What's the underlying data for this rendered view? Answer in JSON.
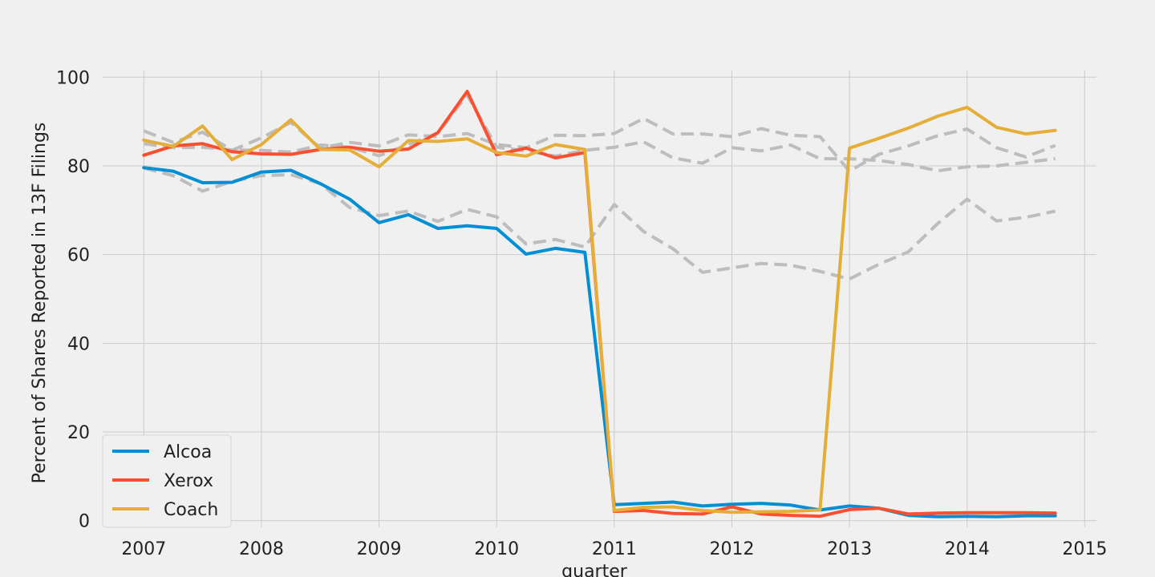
{
  "chart_data": {
    "type": "line",
    "title": "",
    "xlabel": "quarter",
    "ylabel": "Percent of Shares Reported in 13F Filings",
    "xlim": [
      2006.65,
      2015.1
    ],
    "ylim": [
      -1.5,
      101.5
    ],
    "xticks": [
      2007,
      2008,
      2009,
      2010,
      2011,
      2012,
      2013,
      2014,
      2015
    ],
    "yticks": [
      0,
      20,
      40,
      60,
      80,
      100
    ],
    "grid": true,
    "legend_position": "lower-left",
    "x": [
      2007.0,
      2007.25,
      2007.5,
      2007.75,
      2008.0,
      2008.25,
      2008.5,
      2008.75,
      2009.0,
      2009.25,
      2009.5,
      2009.75,
      2010.0,
      2010.25,
      2010.5,
      2010.75,
      2011.0,
      2011.25,
      2011.5,
      2011.75,
      2012.0,
      2012.25,
      2012.5,
      2012.75,
      2013.0,
      2013.25,
      2013.5,
      2013.75,
      2014.0,
      2014.25,
      2014.5,
      2014.75
    ],
    "series": [
      {
        "name": "Alcoa",
        "color": "#008fd5",
        "style": "solid",
        "values": [
          79.6,
          78.8,
          76.2,
          76.3,
          78.6,
          79.0,
          76.0,
          72.5,
          67.2,
          69.0,
          65.9,
          66.5,
          65.9,
          60.1,
          61.4,
          60.5,
          3.6,
          3.9,
          4.2,
          3.3,
          3.7,
          3.9,
          3.5,
          2.4,
          3.3,
          2.8,
          1.2,
          0.9,
          1.0,
          0.9,
          1.1,
          1.1
        ]
      },
      {
        "name": "Xerox",
        "color": "#fc4f30",
        "style": "solid",
        "values": [
          82.4,
          84.5,
          85.0,
          83.2,
          82.7,
          82.6,
          83.7,
          84.2,
          83.3,
          83.8,
          87.5,
          96.8,
          82.5,
          84.0,
          81.8,
          83.0,
          2.1,
          2.3,
          1.6,
          1.5,
          3.1,
          1.5,
          1.2,
          1.0,
          2.5,
          2.8,
          1.5,
          1.7,
          1.8,
          1.8,
          1.8,
          1.7
        ]
      },
      {
        "name": "Coach",
        "color": "#e5ae38",
        "style": "solid",
        "values": [
          85.8,
          84.4,
          89.0,
          81.4,
          84.8,
          90.4,
          83.7,
          83.6,
          79.8,
          85.7,
          85.5,
          86.1,
          83.0,
          82.2,
          84.8,
          83.7,
          2.3,
          3.0,
          3.1,
          2.3,
          1.9,
          2.0,
          2.1,
          2.4,
          84.0,
          86.2,
          88.5,
          91.2,
          93.2,
          88.7,
          87.2,
          88.0
        ]
      },
      {
        "name": "",
        "color": "#bdbdbd",
        "style": "dashed",
        "values": [
          79.5,
          77.8,
          74.3,
          76.5,
          77.8,
          78.0,
          76.0,
          70.6,
          68.8,
          69.8,
          67.5,
          70.2,
          68.5,
          62.4,
          63.4,
          61.7,
          71.3,
          65.2,
          61.3,
          56.0,
          57.0,
          58.0,
          57.6,
          56.2,
          54.5,
          57.8,
          60.6,
          67.0,
          72.5,
          67.6,
          68.4,
          69.8
        ]
      },
      {
        "name": "",
        "color": "#bdbdbd",
        "style": "dashed",
        "values": [
          87.9,
          85.3,
          87.6,
          83.5,
          86.3,
          89.8,
          84.0,
          85.3,
          84.5,
          87.0,
          86.6,
          87.3,
          84.8,
          84.1,
          86.9,
          86.8,
          87.3,
          90.7,
          87.2,
          87.2,
          86.6,
          88.4,
          86.9,
          86.6,
          78.8,
          82.6,
          84.5,
          86.8,
          88.3,
          84.1,
          82.0,
          84.6
        ]
      },
      {
        "name": "",
        "color": "#bdbdbd",
        "style": "dashed",
        "values": [
          85.0,
          84.1,
          84.2,
          83.6,
          83.5,
          83.1,
          84.7,
          84.2,
          82.3,
          84.8,
          87.4,
          96.0,
          84.2,
          83.4,
          82.2,
          83.5,
          84.2,
          85.4,
          81.8,
          80.6,
          84.1,
          83.4,
          84.7,
          81.6,
          81.6,
          81.2,
          80.3,
          78.9,
          79.8,
          80.0,
          80.8,
          81.6
        ]
      }
    ]
  }
}
